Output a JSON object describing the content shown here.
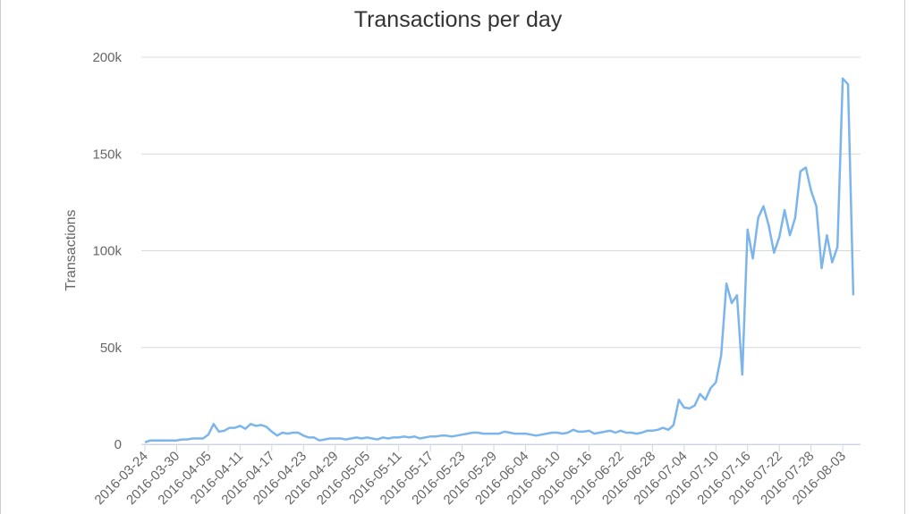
{
  "chart_data": {
    "type": "line",
    "title": "Transactions per day",
    "y_label": "Transactions",
    "color": "#7cb5ec",
    "grid": true,
    "ylim": [
      0,
      200000
    ],
    "yticks": [
      {
        "value": 0,
        "label": "0"
      },
      {
        "value": 50000,
        "label": "50k"
      },
      {
        "value": 100000,
        "label": "100k"
      },
      {
        "value": 150000,
        "label": "150k"
      },
      {
        "value": 200000,
        "label": "200k"
      }
    ],
    "categories": [
      "2016-03-24",
      null,
      null,
      null,
      null,
      null,
      "2016-03-30",
      null,
      null,
      null,
      null,
      null,
      "2016-04-05",
      null,
      null,
      null,
      null,
      null,
      "2016-04-11",
      null,
      null,
      null,
      null,
      null,
      "2016-04-17",
      null,
      null,
      null,
      null,
      null,
      "2016-04-23",
      null,
      null,
      null,
      null,
      null,
      "2016-04-29",
      null,
      null,
      null,
      null,
      null,
      "2016-05-05",
      null,
      null,
      null,
      null,
      null,
      "2016-05-11",
      null,
      null,
      null,
      null,
      null,
      "2016-05-17",
      null,
      null,
      null,
      null,
      null,
      "2016-05-23",
      null,
      null,
      null,
      null,
      null,
      "2016-05-29",
      null,
      null,
      null,
      null,
      null,
      "2016-06-04",
      null,
      null,
      null,
      null,
      null,
      "2016-06-10",
      null,
      null,
      null,
      null,
      null,
      "2016-06-16",
      null,
      null,
      null,
      null,
      null,
      "2016-06-22",
      null,
      null,
      null,
      null,
      null,
      "2016-06-28",
      null,
      null,
      null,
      null,
      null,
      "2016-07-04",
      null,
      null,
      null,
      null,
      null,
      "2016-07-10",
      null,
      null,
      null,
      null,
      null,
      "2016-07-16",
      null,
      null,
      null,
      null,
      null,
      "2016-07-22",
      null,
      null,
      null,
      null,
      null,
      "2016-07-28",
      null,
      null,
      null,
      null,
      null,
      "2016-08-03",
      null,
      null
    ],
    "values": [
      1000,
      2000,
      2000,
      2000,
      2000,
      2000,
      2000,
      2500,
      2500,
      3000,
      3000,
      3000,
      5000,
      10500,
      6500,
      7000,
      8500,
      8500,
      9500,
      8000,
      10500,
      9500,
      10000,
      9000,
      6500,
      4500,
      6000,
      5500,
      6000,
      6000,
      4500,
      3500,
      3500,
      2000,
      2500,
      3000,
      3000,
      3000,
      2500,
      3000,
      3500,
      3000,
      3500,
      3000,
      2500,
      3500,
      3000,
      3500,
      3500,
      4000,
      3500,
      4000,
      3000,
      3500,
      4000,
      4000,
      4500,
      4500,
      4000,
      4500,
      5000,
      5500,
      6000,
      6000,
      5500,
      5500,
      5500,
      5500,
      6500,
      6000,
      5500,
      5500,
      5500,
      5000,
      4500,
      5000,
      5500,
      6000,
      6000,
      5500,
      6000,
      7500,
      6500,
      6500,
      7000,
      5500,
      6000,
      6500,
      7000,
      6000,
      7000,
      6000,
      6000,
      5500,
      6000,
      7000,
      7000,
      7500,
      8500,
      7500,
      10000,
      23000,
      19000,
      18500,
      20000,
      26000,
      23000,
      29000,
      32000,
      46000,
      83000,
      73000,
      77000,
      36000,
      111000,
      96000,
      117000,
      123000,
      113000,
      99000,
      107000,
      121000,
      108000,
      117000,
      141000,
      143000,
      131000,
      123000,
      91000,
      108000,
      94000,
      102000,
      189000,
      186000,
      77000
    ]
  }
}
